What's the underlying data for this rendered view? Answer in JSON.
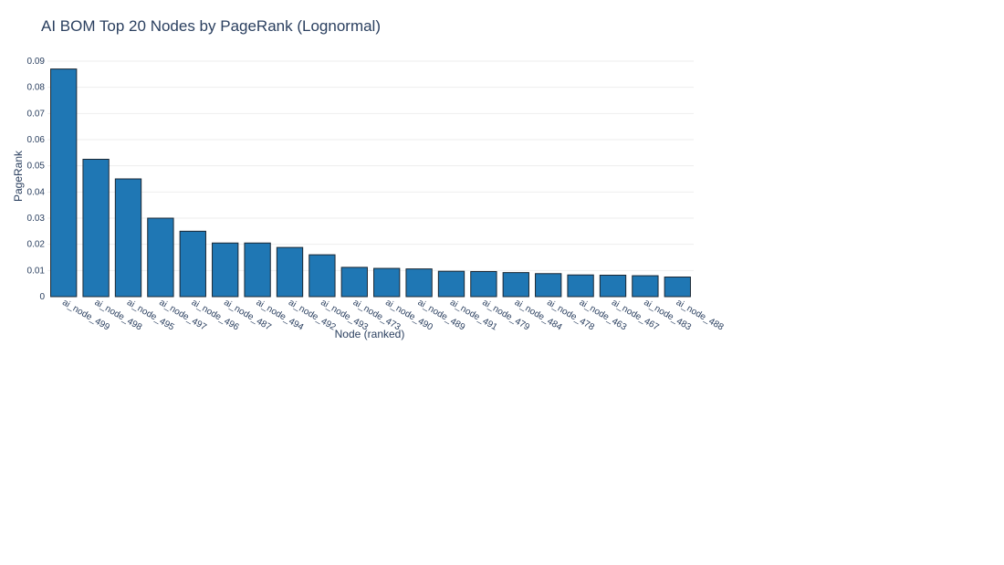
{
  "chart_data": {
    "type": "bar",
    "title": "AI BOM Top 20 Nodes by PageRank (Lognormal)",
    "xlabel": "Node (ranked)",
    "ylabel": "PageRank",
    "ylim": [
      0,
      0.09
    ],
    "y_ticks": [
      "0",
      "0.01",
      "0.02",
      "0.03",
      "0.04",
      "0.05",
      "0.06",
      "0.07",
      "0.08",
      "0.09"
    ],
    "grid": true,
    "bar_color": "#1f77b4",
    "categories": [
      "ai_node_499",
      "ai_node_498",
      "ai_node_495",
      "ai_node_497",
      "ai_node_496",
      "ai_node_487",
      "ai_node_494",
      "ai_node_492",
      "ai_node_493",
      "ai_node_473",
      "ai_node_490",
      "ai_node_489",
      "ai_node_491",
      "ai_node_479",
      "ai_node_484",
      "ai_node_478",
      "ai_node_463",
      "ai_node_467",
      "ai_node_483",
      "ai_node_488"
    ],
    "values": [
      0.087,
      0.0525,
      0.045,
      0.03,
      0.025,
      0.0205,
      0.0205,
      0.0188,
      0.016,
      0.0112,
      0.0108,
      0.0106,
      0.0097,
      0.0096,
      0.0092,
      0.0088,
      0.0083,
      0.0082,
      0.008,
      0.0075
    ]
  }
}
